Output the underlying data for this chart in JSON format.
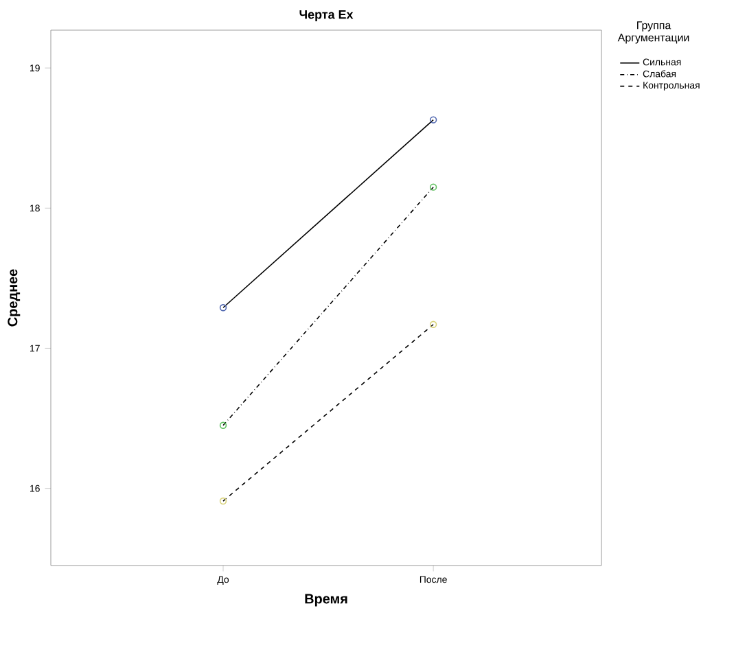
{
  "chart_data": {
    "type": "line",
    "title": "Черта Ex",
    "xlabel": "Время",
    "ylabel": "Среднее",
    "legend_title": "Группа Аргументации",
    "categories": [
      "До",
      "После"
    ],
    "series": [
      {
        "name": "Сильная",
        "color": "#4a62ad",
        "values": [
          17.29,
          18.63
        ],
        "line_style": "solid"
      },
      {
        "name": "Слабая",
        "color": "#5cbf5c",
        "values": [
          16.45,
          18.15
        ],
        "line_style": "dashdot"
      },
      {
        "name": "Контрольная",
        "color": "#d8d27a",
        "values": [
          15.91,
          17.17
        ],
        "line_style": "dashed"
      }
    ],
    "ylim": [
      15.45,
      19.27
    ],
    "yticks": [
      16,
      17,
      18,
      19
    ],
    "marker": "circle",
    "legend": "top right"
  }
}
